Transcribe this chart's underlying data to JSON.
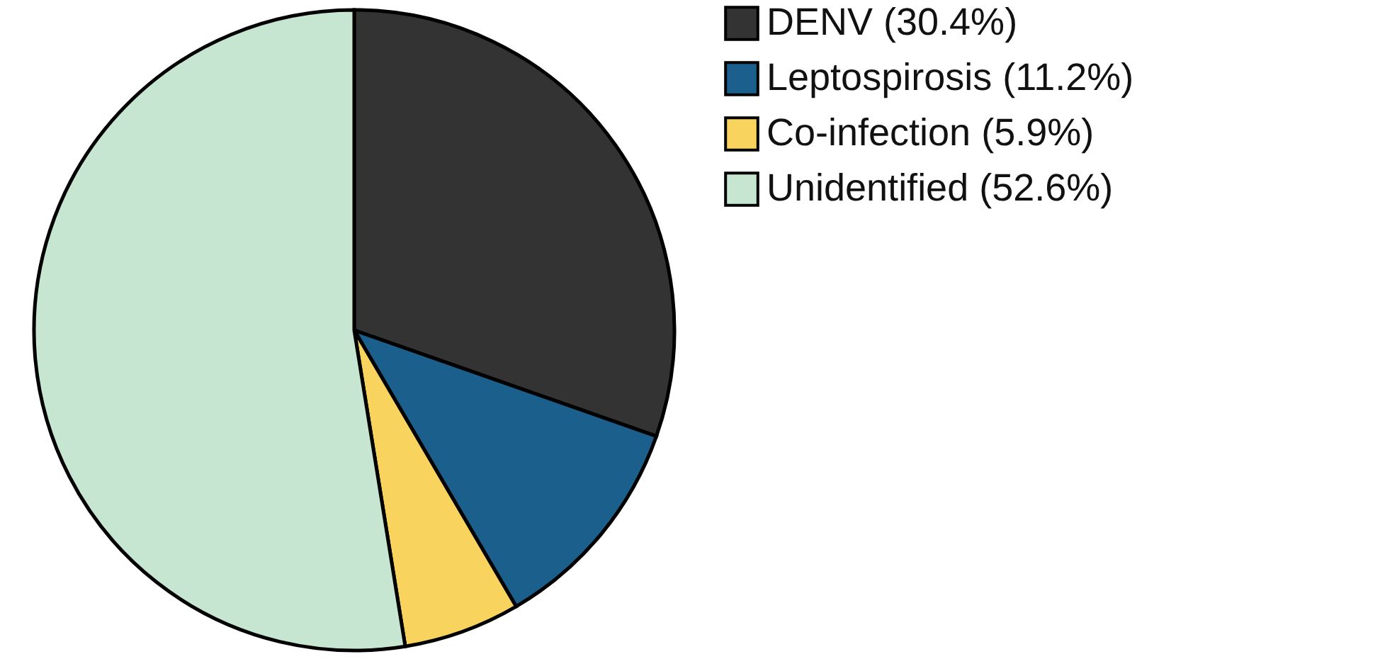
{
  "chart_data": {
    "type": "pie",
    "categories": [
      "DENV (30.4%)",
      "Leptospirosis (11.2%)",
      "Co-infection (5.9%)",
      "Unidentified (52.6%)"
    ],
    "values": [
      30.4,
      11.2,
      5.9,
      52.6
    ],
    "colors": [
      "#333333",
      "#1b5f8c",
      "#f8d35e",
      "#c6e6d1"
    ],
    "legend": "right"
  }
}
